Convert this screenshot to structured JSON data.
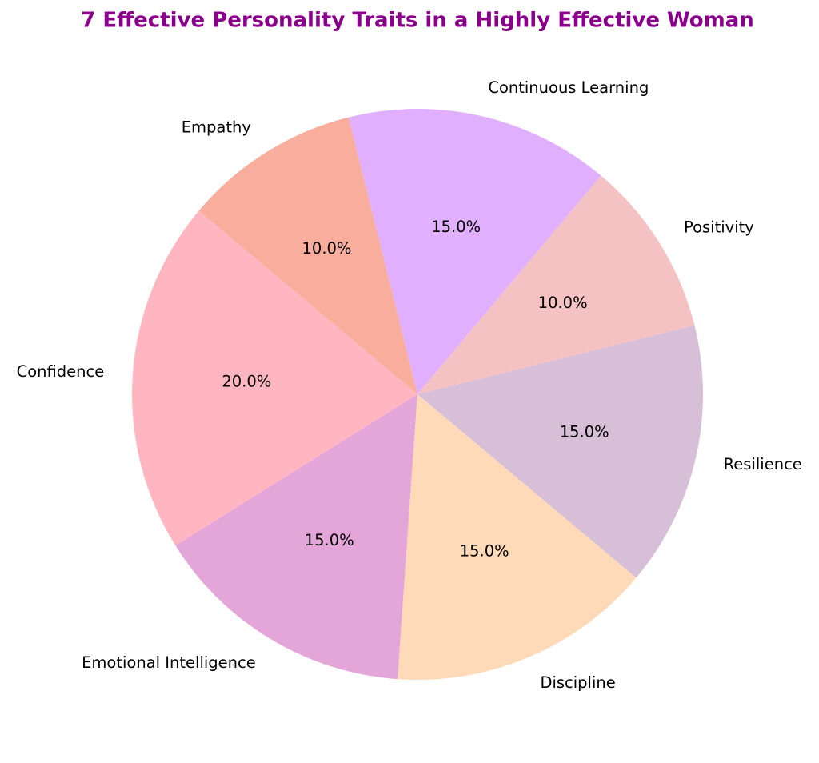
{
  "chart_data": {
    "type": "pie",
    "title": "7 Effective Personality Traits in a Highly Effective Woman",
    "categories": [
      "Confidence",
      "Emotional Intelligence",
      "Discipline",
      "Resilience",
      "Positivity",
      "Continuous Learning",
      "Empathy"
    ],
    "values": [
      20,
      15,
      15,
      15,
      10,
      15,
      10
    ],
    "value_labels": [
      "20.0%",
      "15.0%",
      "15.0%",
      "15.0%",
      "10.0%",
      "15.0%",
      "10.0%"
    ],
    "colors": [
      "#ffb6c1",
      "#e4a6d8",
      "#ffdab9",
      "#d8bfd8",
      "#f4c2c2",
      "#e0b0ff",
      "#f8ad9d"
    ]
  }
}
